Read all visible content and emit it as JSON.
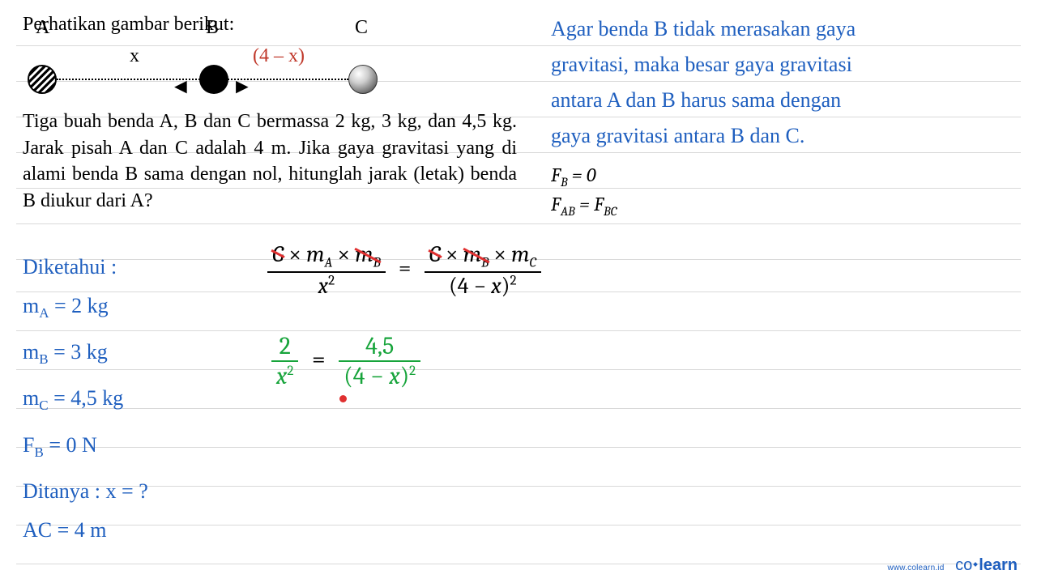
{
  "ruleYs": [
    360,
    408,
    456,
    504,
    552,
    600,
    648,
    696,
    56,
    100,
    144,
    188,
    232,
    276,
    320
  ],
  "problem": {
    "title": "Perhatikan gambar berikut:",
    "labelA": "A",
    "labelB": "B",
    "labelC": "C",
    "xLabel": "x",
    "xLabel2": "(4 – x)",
    "text": "Tiga buah benda A, B dan C bermassa 2 kg, 3 kg, dan 4,5 kg. Jarak pisah A dan C adalah 4 m. Jika gaya gravitasi yang di alami benda B sama dengan nol, hitunglah jarak (letak) benda B diukur dari A?"
  },
  "explanation": {
    "line1": "Agar benda B tidak merasakan gaya",
    "line2": "gravitasi, maka besar gaya gravitasi",
    "line3": "antara A dan B harus sama dengan",
    "line4": "gaya gravitasi antara B dan C."
  },
  "eqs": {
    "fb": "F",
    "fb_sub": "B",
    "fb_rhs": " = 0",
    "fab": "F",
    "fab_sub": "AB",
    "eq": " = ",
    "fbc": "F",
    "fbc_sub": "BC"
  },
  "bigfrac": {
    "G": "G",
    "times": " × ",
    "mA": "m",
    "mA_sub": "A",
    "mB": "m",
    "mB_sub": "B",
    "mC": "m",
    "mC_sub": "C",
    "x2_base": "x",
    "sq": "2",
    "den_left": "x",
    "den_right_open": "(4 − ",
    "den_right_var": "x",
    "den_right_close": ")",
    "eq": "="
  },
  "eq2": {
    "num_left": "2",
    "den_left": "x",
    "sq": "2",
    "eq": "=",
    "num_right": "4,5",
    "den_right_open": "(4 − ",
    "den_right_var": "x",
    "den_right_close": ")"
  },
  "known": {
    "title": "Diketahui :",
    "mA": "m",
    "mA_sub": "A",
    "mA_val": " = 2 kg",
    "mB": "m",
    "mB_sub": "B",
    "mB_val": " = 3 kg",
    "mC": "m",
    "mC_sub": "C",
    "mC_val": " = 4,5 kg",
    "FB": "F",
    "FB_sub": "B",
    "FB_val": " = 0 N",
    "ask": "Ditanya : x = ?",
    "AC": "AC = 4 m"
  },
  "footer": {
    "url": "www.colearn.id",
    "brand_co": "co",
    "brand_learn": "learn"
  },
  "colors": {
    "blue": "#1f5fbf",
    "green": "#17a43b",
    "red": "#e03030",
    "darkred": "#c0392b",
    "rule": "#d9d9d9"
  }
}
